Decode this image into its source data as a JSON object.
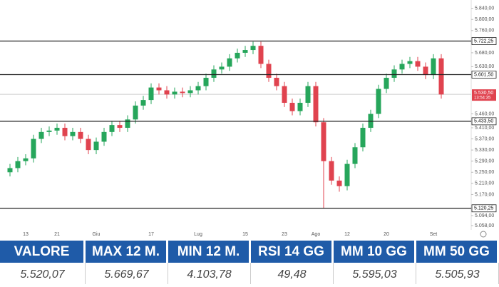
{
  "chart_data": {
    "type": "candlestick",
    "x": [
      null,
      null,
      "13",
      null,
      null,
      null,
      "21",
      null,
      null,
      null,
      null,
      "Giu",
      null,
      null,
      null,
      null,
      null,
      null,
      "17",
      null,
      null,
      null,
      null,
      null,
      "Lug",
      null,
      null,
      null,
      null,
      null,
      "15",
      null,
      null,
      null,
      null,
      "23",
      null,
      null,
      null,
      "Ago",
      null,
      null,
      null,
      "12",
      null,
      null,
      null,
      null,
      "20",
      null,
      null,
      null,
      null,
      null,
      "Set",
      null
    ],
    "open": [
      5250,
      5265,
      5290,
      5300,
      5370,
      5395,
      5400,
      5410,
      5380,
      5395,
      5370,
      5330,
      5360,
      5395,
      5420,
      5410,
      5440,
      5490,
      5510,
      5555,
      5545,
      5530,
      5540,
      5535,
      5545,
      5560,
      5590,
      5620,
      5630,
      5660,
      5680,
      5690,
      5705,
      5640,
      5590,
      5560,
      5500,
      5470,
      5500,
      5560,
      5430,
      5290,
      5220,
      5200,
      5280,
      5340,
      5410,
      5460,
      5550,
      5590,
      5620,
      5640,
      5650,
      5630,
      5600,
      5660
    ],
    "high": [
      5280,
      5305,
      5315,
      5385,
      5410,
      5415,
      5425,
      5425,
      5410,
      5410,
      5385,
      5375,
      5410,
      5435,
      5435,
      5455,
      5505,
      5525,
      5570,
      5570,
      5560,
      5555,
      5555,
      5560,
      5575,
      5605,
      5635,
      5645,
      5675,
      5695,
      5705,
      5720,
      5720,
      5655,
      5605,
      5575,
      5515,
      5515,
      5575,
      5575,
      5445,
      5305,
      5235,
      5295,
      5355,
      5425,
      5475,
      5565,
      5605,
      5635,
      5655,
      5665,
      5665,
      5645,
      5675,
      5675
    ],
    "low": [
      5235,
      5250,
      5275,
      5285,
      5355,
      5380,
      5385,
      5365,
      5365,
      5355,
      5315,
      5315,
      5345,
      5380,
      5395,
      5395,
      5425,
      5475,
      5495,
      5530,
      5515,
      5515,
      5520,
      5520,
      5530,
      5545,
      5575,
      5605,
      5615,
      5645,
      5665,
      5675,
      5625,
      5575,
      5545,
      5485,
      5455,
      5455,
      5485,
      5415,
      5120,
      5205,
      5180,
      5185,
      5265,
      5325,
      5395,
      5445,
      5535,
      5575,
      5605,
      5625,
      5615,
      5585,
      5585,
      5515
    ],
    "close": [
      5265,
      5290,
      5300,
      5370,
      5395,
      5400,
      5410,
      5380,
      5395,
      5370,
      5330,
      5360,
      5395,
      5420,
      5410,
      5440,
      5490,
      5510,
      5555,
      5545,
      5530,
      5540,
      5535,
      5545,
      5560,
      5590,
      5620,
      5630,
      5660,
      5680,
      5690,
      5705,
      5640,
      5590,
      5560,
      5500,
      5470,
      5500,
      5560,
      5430,
      5290,
      5220,
      5200,
      5280,
      5340,
      5410,
      5460,
      5550,
      5590,
      5620,
      5640,
      5650,
      5630,
      5600,
      5660,
      5530
    ],
    "up_color": "#26a65b",
    "down_color": "#e0434f",
    "ylim": [
      5040,
      5870
    ],
    "yticks": [
      {
        "value": 5840,
        "label": "5.840,00"
      },
      {
        "value": 5800,
        "label": "5.800,00"
      },
      {
        "value": 5760,
        "label": "5.760,00"
      },
      {
        "value": 5680,
        "label": "5.680,00"
      },
      {
        "value": 5630,
        "label": "5.630,00"
      },
      {
        "value": 5460,
        "label": "5.460,00"
      },
      {
        "value": 5410,
        "label": "5.410,00"
      },
      {
        "value": 5370,
        "label": "5.370,00"
      },
      {
        "value": 5330,
        "label": "5.330,00"
      },
      {
        "value": 5290,
        "label": "5.290,00"
      },
      {
        "value": 5250,
        "label": "5.250,00"
      },
      {
        "value": 5210,
        "label": "5.210,00"
      },
      {
        "value": 5170,
        "label": "5.170,00"
      },
      {
        "value": 5094,
        "label": "5.094,00"
      },
      {
        "value": 5058,
        "label": "5.058,00"
      }
    ],
    "levels": [
      {
        "value": 5722.25,
        "label": "5.722,25"
      },
      {
        "value": 5601.5,
        "label": "5.601,50"
      },
      {
        "value": 5433.5,
        "label": "5.433,50"
      },
      {
        "value": 5120.25,
        "label": "5.120,25"
      }
    ],
    "last": {
      "value": 5530.5,
      "label": "5.530,50",
      "time": "13:54:35"
    }
  },
  "table": {
    "headers": [
      "VALORE",
      "MAX 12 M.",
      "MIN 12 M.",
      "RSI 14 GG",
      "MM 10 GG",
      "MM 50 GG"
    ],
    "rows": [
      [
        "5.520,07",
        "5.669,67",
        "4.103,78",
        "49,48",
        "5.595,03",
        "5.505,93"
      ]
    ]
  }
}
